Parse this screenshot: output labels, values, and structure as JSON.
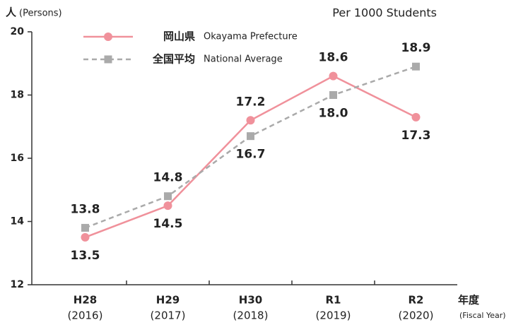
{
  "chart_data": {
    "type": "line",
    "y_label": "人",
    "y_label_unit": "(Persons)",
    "subtitle": "Per 1000 Students",
    "x_label": "年度",
    "x_label_en": "(Fiscal Year)",
    "categories": [
      "H28",
      "H29",
      "H30",
      "R1",
      "R2"
    ],
    "category_years": [
      "(2016)",
      "(2017)",
      "(2018)",
      "(2019)",
      "(2020)"
    ],
    "series": [
      {
        "name": "岡山県",
        "name_en": "Okayama Prefecture",
        "color": "#f0919b",
        "dashed": false,
        "marker": "circle",
        "values": [
          13.5,
          14.5,
          17.2,
          18.6,
          17.3
        ],
        "value_labels": [
          "13.5",
          "14.5",
          "17.2",
          "18.6",
          "17.3"
        ]
      },
      {
        "name": "全国平均",
        "name_en": "National Average",
        "color": "#aaaaaa",
        "dashed": true,
        "marker": "square",
        "values": [
          13.8,
          14.8,
          16.7,
          18.0,
          18.9
        ],
        "value_labels": [
          "13.8",
          "14.8",
          "16.7",
          "18.0",
          "18.9"
        ]
      }
    ],
    "ylim": [
      12,
      20
    ],
    "yticks": [
      12,
      14,
      16,
      18,
      20
    ],
    "grid": false
  }
}
